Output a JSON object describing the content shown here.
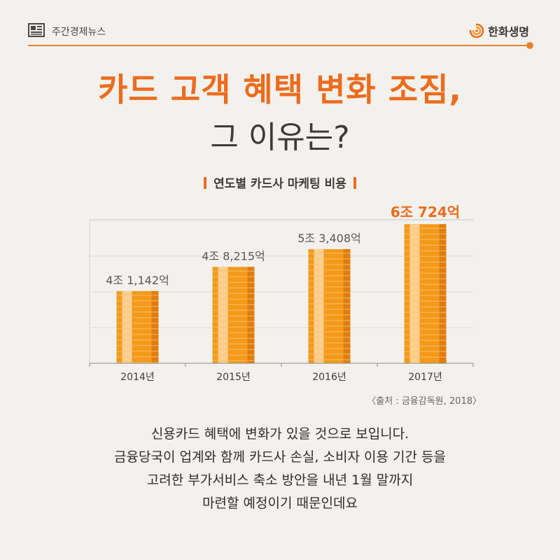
{
  "header": {
    "brand": "주간경제뉴스",
    "logo_text": "한화생명",
    "news_icon": "newspaper-icon",
    "logo_icon": "hanwha-logo-icon",
    "accent": "#e8822e"
  },
  "title": {
    "line1": "카드 고객 혜택 변화 조짐,",
    "line2": "그 이유는?"
  },
  "chart_data": {
    "type": "bar",
    "title": "연도별 카드사 마케팅 비용",
    "categories": [
      "2014년",
      "2015년",
      "2016년",
      "2017년"
    ],
    "values": [
      41142,
      48215,
      53408,
      60724
    ],
    "value_labels": [
      "4조 1,142억",
      "4조 8,215억",
      "5조 3,408억",
      "6조 724억"
    ],
    "highlight_index": 3,
    "unit": "억원",
    "ylim": [
      20000,
      62000
    ],
    "grid": true,
    "colors": {
      "bar": "#f39a1a",
      "bar_light": "#fbcf8f",
      "bar_dark": "#e07d10",
      "highlight_label": "#ec6c1d",
      "label": "#5a5753"
    }
  },
  "source": "〈출처 : 금융감독원, 2018〉",
  "body": {
    "lines": [
      "신용카드 혜택에 변화가 있을 것으로 보입니다.",
      "금융당국이 업계와 함께 카드사 손실, 소비자 이용 기간 등을",
      "고려한 부가서비스 축소 방안을 내년 1월 말까지",
      "마련할 예정이기 때문인데요"
    ]
  }
}
